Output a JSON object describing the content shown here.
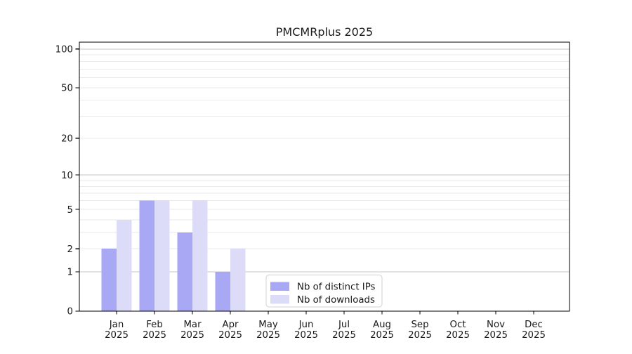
{
  "title": "PMCMRplus 2025",
  "chart_data": {
    "type": "bar",
    "title": "PMCMRplus 2025",
    "categories": [
      "Jan",
      "Feb",
      "Mar",
      "Apr",
      "May",
      "Jun",
      "Jul",
      "Aug",
      "Sep",
      "Oct",
      "Nov",
      "Dec"
    ],
    "category_year": "2025",
    "series": [
      {
        "name": "Nb of distinct IPs",
        "color": "#a8a8f5",
        "values": [
          2,
          6,
          3,
          1,
          0,
          0,
          0,
          0,
          0,
          0,
          0,
          0
        ]
      },
      {
        "name": "Nb of downloads",
        "color": "#dcdcf8",
        "values": [
          4,
          6,
          6,
          2,
          0,
          0,
          0,
          0,
          0,
          0,
          0,
          0
        ]
      }
    ],
    "yscale": "log1p",
    "ylim": [
      0,
      113
    ],
    "y_tick_labels": [
      "100",
      "50",
      "20",
      "10",
      "5",
      "2",
      "1",
      "0"
    ],
    "y_tick_values": [
      100,
      50,
      20,
      10,
      5,
      2,
      1,
      0
    ],
    "y_major_grid": [
      1,
      10,
      100
    ],
    "y_minor_grid": [
      2,
      3,
      4,
      5,
      6,
      7,
      8,
      9,
      20,
      30,
      40,
      50,
      60,
      70,
      80,
      90
    ],
    "grid": true,
    "legend_position": "lower center"
  },
  "colors": {
    "background": "#ffffff",
    "text": "#1a1a1a",
    "spine": "#000000",
    "grid_major": "#c6c6c6",
    "grid_minor": "#eaeaea",
    "legend_border": "#d0d0d0"
  }
}
